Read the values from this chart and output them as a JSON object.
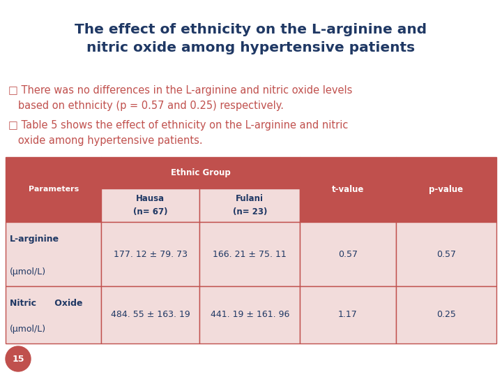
{
  "title_line1": "The effect of ethnicity on the L-arginine and",
  "title_line2": "nitric oxide among hypertensive patients",
  "title_color": "#1F3864",
  "bullet_color": "#C0504D",
  "bullet1_line1": "□ There was no differences in the L-arginine and nitric oxide levels",
  "bullet1_line2": "   based on ethnicity (p = 0.57 and 0.25) respectively.",
  "bullet2_line1": "□ Table 5 shows the effect of ethnicity on the L-arginine and nitric",
  "bullet2_line2": "   oxide among hypertensive patients.",
  "text_color": "#1F3864",
  "bg_color": "#FFFFFF",
  "table_header_bg": "#C0504D",
  "table_subheader_bg": "#F2DCDB",
  "table_header_text": "#FFFFFF",
  "table_row1_bg": "#F2DCDB",
  "table_row2_bg": "#F2DCDB",
  "table_border_color": "#C0504D",
  "table_data_color": "#1F3864",
  "ethnic_group_label": "Ethnic Group",
  "row1_label_line1": "L-arginine",
  "row1_label_line2": "(μmol/L)",
  "row1_hausa": "177. 12 ± 79. 73",
  "row1_fulani": "166. 21 ± 75. 11",
  "row1_t": "0.57",
  "row1_p": "0.57",
  "row2_label_line1": "Nitric      Oxide",
  "row2_label_line2": "(μmol/L)",
  "row2_hausa": "484. 55 ± 163. 19",
  "row2_fulani": "441. 19 ± 161. 96",
  "row2_t": "1.17",
  "row2_p": "0.25",
  "slide_number": "15",
  "slide_number_bg": "#C0504D",
  "slide_number_text": "#FFFFFF",
  "rounded_corner_color": "#D3D3D3"
}
